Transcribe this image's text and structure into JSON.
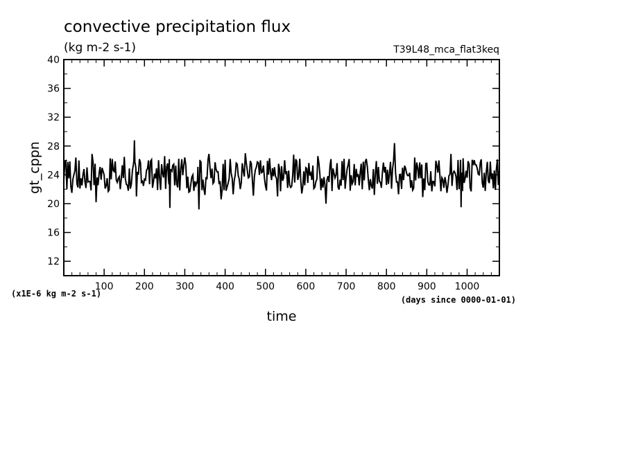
{
  "chart_data": {
    "type": "line",
    "title": "convective precipitation flux",
    "subtitle": "(kg m-2 s-1)",
    "run_label": "T39L48_mca_flat3keq",
    "xlabel": "time",
    "x_unit_note": "(days since 0000-01-01)",
    "ylabel": "gt_cppn",
    "y_scale_note": "(x1E-6 kg m-2 s-1)",
    "xlim": [
      0,
      1080
    ],
    "ylim": [
      10,
      40
    ],
    "x_ticks": [
      100,
      200,
      300,
      400,
      500,
      600,
      700,
      800,
      900,
      1000
    ],
    "y_ticks": [
      12,
      16,
      20,
      24,
      28,
      32,
      36,
      40
    ],
    "grid": false,
    "legend": "none",
    "line_color": "#000000",
    "series": [
      {
        "x": [
          0,
          10,
          20,
          30,
          40,
          50,
          60,
          70,
          80,
          90,
          100,
          110,
          120,
          130,
          140,
          150,
          160,
          170,
          175,
          180,
          190,
          200,
          210,
          220,
          230,
          240,
          250,
          260,
          263,
          270,
          280,
          290,
          300,
          310,
          320,
          330,
          335,
          340,
          350,
          360,
          370,
          380,
          390,
          400,
          410,
          420,
          430,
          440,
          450,
          460,
          470,
          480,
          490,
          500,
          510,
          520,
          530,
          540,
          550,
          560,
          570,
          580,
          590,
          600,
          610,
          620,
          630,
          640,
          650,
          660,
          670,
          680,
          690,
          700,
          710,
          720,
          730,
          740,
          750,
          760,
          770,
          780,
          790,
          800,
          810,
          820,
          830,
          840,
          850,
          860,
          870,
          880,
          890,
          900,
          910,
          920,
          930,
          940,
          950,
          960,
          970,
          980,
          985,
          990,
          1000,
          1010,
          1020,
          1030,
          1040,
          1050,
          1060,
          1070,
          1080
        ],
        "values": [
          23.2,
          25.8,
          21.5,
          26.4,
          22.1,
          24.8,
          23.0,
          26.9,
          20.2,
          25.1,
          24.0,
          21.7,
          26.2,
          23.3,
          22.0,
          26.5,
          21.8,
          24.6,
          28.8,
          21.0,
          25.7,
          23.4,
          26.0,
          22.2,
          24.9,
          21.9,
          26.6,
          23.1,
          19.4,
          25.3,
          22.7,
          24.8,
          26.4,
          21.6,
          24.0,
          23.0,
          19.2,
          25.9,
          21.2,
          26.9,
          22.8,
          24.4,
          20.6,
          26.1,
          23.5,
          21.3,
          25.5,
          22.9,
          27.0,
          23.7,
          21.1,
          25.8,
          24.3,
          22.5,
          26.3,
          23.8,
          21.0,
          25.2,
          24.1,
          22.6,
          26.8,
          23.3,
          21.4,
          25.0,
          23.9,
          22.1,
          26.6,
          23.5,
          20.0,
          25.3,
          24.2,
          22.3,
          25.9,
          23.6,
          21.8,
          25.5,
          24.1,
          22.0,
          26.2,
          23.4,
          21.2,
          25.1,
          24.4,
          22.6,
          25.8,
          28.4,
          21.3,
          25.0,
          24.2,
          22.2,
          26.4,
          23.5,
          20.9,
          25.6,
          24.5,
          22.4,
          26.0,
          23.3,
          21.5,
          26.9,
          24.3,
          22.0,
          19.5,
          26.3,
          23.6,
          21.7,
          25.4,
          24.0,
          22.2,
          25.8,
          23.4,
          21.9,
          24.6
        ]
      }
    ]
  }
}
